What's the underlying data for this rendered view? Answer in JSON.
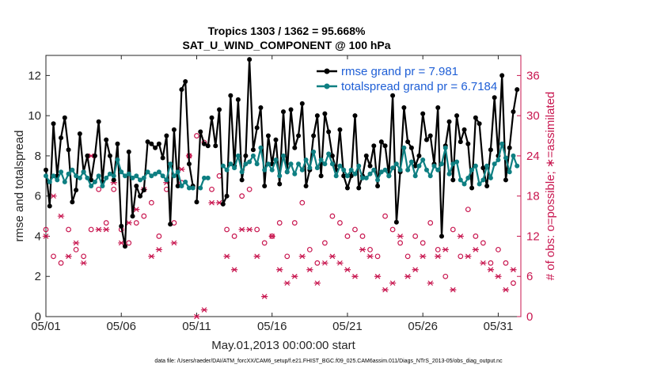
{
  "colors": {
    "rmse": "#000000",
    "spread": "#0e7f82",
    "obs": "#c8164f",
    "legend_text": "#1f5fd6"
  },
  "chart_data": {
    "type": "line",
    "title_line1": "Tropics 1303 / 1362 = 95.668%",
    "title_line2": "SAT_U_WIND_COMPONENT @ 100 hPa",
    "xlabel": "May.01,2013 00:00:00 start",
    "ylabel_left": "rmse and totalspread",
    "ylabel_right": "# of obs: o=possible; ∗=assimilated",
    "x_range": [
      0,
      31.5
    ],
    "ylim_left": [
      0,
      13
    ],
    "ylim_right": [
      0,
      39
    ],
    "x_ticks": [
      0,
      5,
      10,
      15,
      20,
      25,
      30
    ],
    "x_tick_labels": [
      "05/01",
      "05/06",
      "05/11",
      "05/16",
      "05/21",
      "05/26",
      "05/31"
    ],
    "y_left_ticks": [
      0,
      2,
      4,
      6,
      8,
      10,
      12
    ],
    "y_left_tick_labels": [
      "0",
      "2",
      "4",
      "6",
      "8",
      "10",
      "12"
    ],
    "y_right_ticks": [
      0,
      6,
      12,
      18,
      24,
      30,
      36
    ],
    "y_right_tick_labels": [
      "0",
      "6",
      "12",
      "18",
      "24",
      "30",
      "36"
    ],
    "legend": [
      {
        "name": "rmse grand pr = 7.981",
        "series": "rmse"
      },
      {
        "name": "totalspread grand pr = 6.7184",
        "series": "spread"
      }
    ],
    "series": [
      {
        "name": "rmse",
        "color": "#000000",
        "segments": [
          {
            "x": [
              0.0,
              0.25,
              0.5,
              0.75,
              1.0,
              1.25,
              1.5,
              1.75,
              2.0,
              2.25,
              2.5,
              2.75,
              3.0,
              3.25,
              3.5,
              3.75,
              4.0,
              4.25,
              4.5,
              4.75,
              5.0,
              5.25,
              5.5,
              5.75,
              6.0,
              6.25,
              6.5,
              6.75,
              7.0,
              7.25,
              7.5,
              7.75,
              8.0,
              8.25,
              8.5,
              8.75,
              9.0,
              9.25,
              9.5,
              9.75
            ],
            "values": [
              7.3,
              5.5,
              9.6,
              7.0,
              8.9,
              9.9,
              8.3,
              5.7,
              6.3,
              9.1,
              7.2,
              8.0,
              6.8,
              8.0,
              9.7,
              6.7,
              8.8,
              8.0,
              6.8,
              8.6,
              4.5,
              3.5,
              8.2,
              5.0,
              6.5,
              6.0,
              6.3,
              8.7,
              8.6,
              8.4,
              8.6,
              7.9,
              9.0,
              4.6,
              9.3,
              6.5,
              11.3,
              11.7,
              7.6,
              6.5
            ]
          },
          {
            "x": [
              10.0,
              10.25,
              10.5,
              10.75,
              11.0,
              11.25,
              11.5,
              11.75,
              12.0,
              12.25,
              12.5,
              12.75,
              13.0,
              13.25,
              13.5,
              13.75,
              14.0,
              14.25,
              14.5,
              14.75,
              15.0,
              15.25,
              15.5,
              15.75,
              16.0,
              16.25,
              16.5,
              16.75,
              17.0,
              17.25,
              17.5,
              17.75,
              18.0,
              18.25,
              18.5,
              18.75,
              19.0,
              19.25,
              19.5,
              19.75,
              20.0,
              20.25,
              20.5,
              20.75,
              21.0,
              21.25,
              21.5,
              21.75,
              22.0,
              22.25,
              22.5,
              22.75,
              23.0,
              23.25,
              23.5,
              23.75,
              24.0,
              24.25,
              24.5,
              24.75,
              25.0,
              25.25,
              25.5,
              25.75,
              26.0,
              26.25,
              26.5,
              26.75,
              27.0,
              27.25,
              27.5,
              27.75,
              28.0,
              28.25,
              28.5,
              28.75,
              29.0,
              29.25,
              29.5,
              29.75,
              30.0,
              30.25,
              30.5,
              30.75,
              31.0,
              31.25
            ],
            "values": [
              5.7,
              9.2,
              8.6,
              8.5,
              9.9,
              8.5,
              10.3,
              5.6,
              6.0,
              11.0,
              7.5,
              10.8,
              6.8,
              8.0,
              12.8,
              8.3,
              9.4,
              10.4,
              6.5,
              9.0,
              7.6,
              8.8,
              6.6,
              10.2,
              7.2,
              10.3,
              8.4,
              9.0,
              10.6,
              6.5,
              7.3,
              9.0,
              10.0,
              7.0,
              10.1,
              9.2,
              8.0,
              7.3,
              9.3,
              7.0,
              6.4,
              7.0,
              10.0,
              6.4,
              7.0,
              8.0,
              7.5,
              8.5,
              6.5,
              8.7,
              8.5,
              7.0,
              11.0,
              4.7,
              7.2,
              10.4,
              8.7,
              8.4,
              7.5,
              8.0,
              10.1,
              8.8,
              9.0,
              7.6,
              10.4,
              4.0,
              8.5,
              9.7,
              6.8,
              10.0,
              8.7,
              9.3,
              8.6,
              6.4,
              9.9,
              9.6,
              7.4,
              6.5,
              8.3,
              10.9,
              8.0,
              12.0,
              6.8,
              8.4,
              10.2,
              11.3
            ]
          }
        ]
      },
      {
        "name": "totalspread",
        "color": "#0e7f82",
        "segments": [
          {
            "x": [
              0.0,
              0.25,
              0.5,
              0.75,
              1.0,
              1.25,
              1.5,
              1.75,
              2.0,
              2.25,
              2.5,
              2.75,
              3.0,
              3.25,
              3.5,
              3.75,
              4.0,
              4.25,
              4.5,
              4.75,
              5.0,
              5.25,
              5.5,
              5.75,
              6.0,
              6.25,
              6.5,
              6.75,
              7.0,
              7.25,
              7.5,
              7.75,
              8.0,
              8.25,
              8.5,
              8.75,
              9.0,
              9.25,
              9.5,
              9.75
            ],
            "values": [
              7.0,
              6.7,
              7.0,
              6.8,
              7.2,
              6.7,
              7.1,
              7.3,
              7.0,
              6.9,
              7.2,
              6.9,
              6.5,
              6.7,
              7.0,
              6.5,
              6.9,
              7.1,
              7.0,
              7.8,
              7.2,
              7.0,
              7.1,
              6.9,
              7.0,
              6.8,
              6.9,
              7.2,
              7.0,
              7.1,
              7.2,
              7.0,
              6.8,
              7.6,
              7.0,
              7.2,
              6.5,
              6.7,
              6.4,
              6.4
            ]
          },
          {
            "x": [
              10.25,
              10.5,
              10.75
            ],
            "values": [
              6.4,
              6.9,
              6.9
            ]
          },
          {
            "x": [
              11.75,
              12.0,
              12.25,
              12.5,
              12.75,
              13.0,
              13.25,
              13.5,
              13.75,
              14.0,
              14.25,
              14.5,
              14.75,
              15.0,
              15.25,
              15.5,
              15.75,
              16.0,
              16.25,
              16.5,
              16.75,
              17.0,
              17.25,
              17.5,
              17.75,
              18.0,
              18.25,
              18.5,
              18.75,
              19.0,
              19.25,
              19.5,
              19.75,
              20.0,
              20.25,
              20.5,
              20.75,
              21.0,
              21.25,
              21.5,
              21.75,
              22.0,
              22.25,
              22.5,
              22.75,
              23.0,
              23.25,
              23.5,
              23.75,
              24.0,
              24.25,
              24.5,
              24.75,
              25.0,
              25.25,
              25.5,
              25.75,
              26.0,
              26.25,
              26.5,
              26.75,
              27.0,
              27.25,
              27.5,
              27.75,
              28.0,
              28.25,
              28.5,
              28.75,
              29.0,
              29.25,
              29.5,
              29.75,
              30.0,
              30.25,
              30.5,
              30.75,
              31.0,
              31.25
            ],
            "values": [
              7.5,
              7.3,
              7.6,
              7.4,
              8.0,
              7.2,
              7.6,
              7.7,
              8.0,
              7.6,
              8.4,
              7.3,
              7.6,
              7.3,
              7.8,
              7.0,
              8.0,
              7.2,
              7.6,
              7.1,
              7.6,
              7.3,
              7.8,
              7.4,
              8.2,
              7.4,
              7.8,
              7.6,
              8.1,
              7.6,
              7.0,
              7.5,
              7.3,
              7.0,
              7.3,
              7.1,
              7.5,
              6.9,
              6.9,
              7.1,
              7.3,
              6.8,
              7.2,
              7.3,
              7.0,
              7.4,
              7.6,
              7.3,
              8.4,
              7.3,
              7.7,
              7.0,
              7.5,
              7.8,
              7.3,
              7.0,
              7.5,
              7.3,
              7.6,
              8.4,
              7.1,
              7.6,
              7.7,
              6.8,
              6.6,
              6.9,
              7.3,
              7.5,
              6.6,
              6.8,
              7.5,
              6.9,
              7.6,
              7.8,
              8.6,
              7.9,
              7.2,
              8.0,
              7.5
            ]
          }
        ]
      }
    ],
    "obs_possible": {
      "marker": "o",
      "color": "#c8164f",
      "x": [
        0.0,
        0.5,
        1.0,
        1.5,
        2.0,
        2.5,
        3.0,
        3.5,
        4.0,
        4.5,
        5.0,
        5.5,
        6.0,
        6.5,
        7.0,
        7.5,
        8.0,
        8.5,
        9.0,
        9.5,
        10.0,
        10.5,
        11.0,
        11.5,
        12.0,
        12.5,
        13.0,
        13.5,
        14.0,
        14.5,
        15.0,
        15.5,
        16.0,
        16.5,
        17.0,
        17.5,
        18.0,
        18.5,
        19.0,
        19.5,
        20.0,
        20.5,
        21.0,
        21.5,
        22.0,
        22.5,
        23.0,
        23.5,
        24.0,
        24.5,
        25.0,
        25.5,
        26.0,
        26.5,
        27.0,
        27.5,
        28.0,
        28.5,
        29.0,
        29.5,
        30.0,
        30.5,
        31.0
      ],
      "values": [
        13,
        9,
        8,
        13,
        10,
        9,
        13,
        19,
        14,
        19,
        13,
        11,
        14,
        15,
        17,
        12,
        19,
        14,
        20,
        24,
        27,
        26,
        19,
        21,
        13,
        12,
        18,
        19,
        13,
        11,
        12,
        14,
        9,
        14,
        17,
        10,
        8,
        11,
        15,
        14,
        12,
        13,
        12,
        10,
        9,
        15,
        13,
        11,
        9,
        12,
        11,
        14,
        10,
        6,
        13,
        9,
        16,
        12,
        11,
        8,
        10,
        8,
        5
      ]
    },
    "obs_assimilated": {
      "marker": "*",
      "color": "#c8164f",
      "x": [
        0.0,
        0.5,
        1.0,
        1.5,
        2.0,
        2.5,
        3.0,
        3.5,
        4.0,
        4.5,
        5.0,
        5.5,
        6.0,
        6.5,
        7.0,
        7.5,
        8.0,
        8.5,
        9.0,
        9.5,
        10.0,
        10.5,
        11.0,
        11.5,
        12.0,
        12.5,
        13.0,
        13.5,
        14.0,
        14.5,
        15.0,
        15.5,
        16.0,
        16.5,
        17.0,
        17.5,
        18.0,
        18.5,
        19.0,
        19.5,
        20.0,
        20.5,
        21.0,
        21.5,
        22.0,
        22.5,
        23.0,
        23.5,
        24.0,
        24.5,
        25.0,
        25.5,
        26.0,
        26.5,
        27.0,
        27.5,
        28.0,
        28.5,
        29.0,
        29.5,
        30.0,
        30.5,
        31.0
      ],
      "values": [
        12,
        18,
        15,
        9,
        11,
        8,
        24,
        13,
        13,
        20,
        11,
        14,
        16,
        19,
        9,
        10,
        20,
        11,
        22,
        24,
        0,
        1,
        17,
        17,
        9,
        7,
        13,
        13,
        9,
        3,
        12,
        7,
        5,
        6,
        9,
        7,
        5,
        8,
        9,
        8,
        7,
        6,
        10,
        9,
        6,
        4,
        5,
        12,
        6,
        7,
        9,
        5,
        9,
        10,
        4,
        12,
        9,
        10,
        8,
        7,
        6,
        4,
        7
      ]
    }
  },
  "footer": {
    "text": "data file: /Users/raeder/DAI/ATM_forcXX/CAM6_setup/f.e21.FHIST_BGC.f09_025.CAM6assim.011/Diags_NTrS_2013-05/obs_diag_output.nc"
  }
}
